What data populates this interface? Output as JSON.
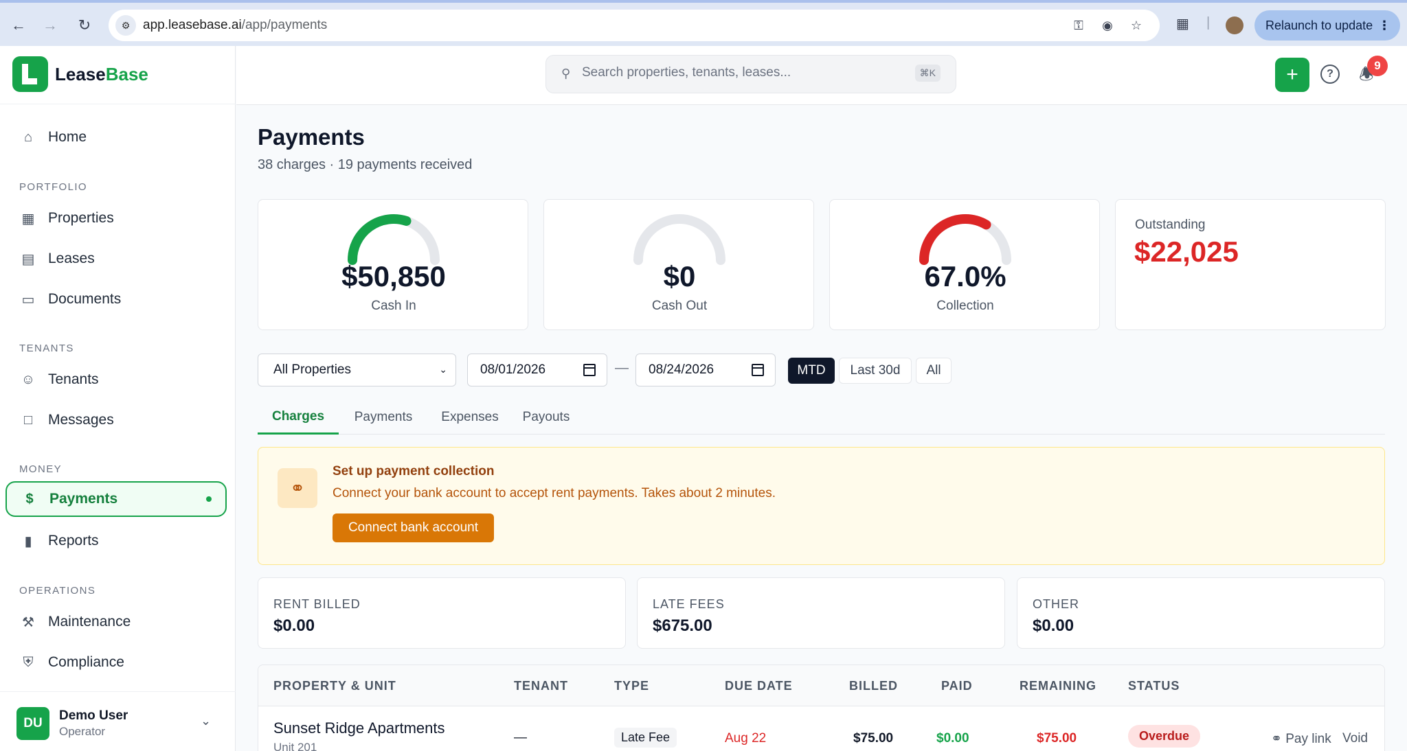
{
  "browser": {
    "url_host": "app.leasebase.ai",
    "url_path": "/app/payments",
    "relaunch_label": "Relaunch to update"
  },
  "brand": {
    "name_dark": "Lease",
    "name_accent": "Base"
  },
  "sidebar": {
    "home": "Home",
    "sections": {
      "portfolio": "PORTFOLIO",
      "tenants": "TENANTS",
      "money": "MONEY",
      "operations": "OPERATIONS"
    },
    "items": {
      "properties": "Properties",
      "leases": "Leases",
      "documents": "Documents",
      "tenants": "Tenants",
      "messages": "Messages",
      "payments": "Payments",
      "reports": "Reports",
      "maintenance": "Maintenance",
      "compliance": "Compliance"
    },
    "user": {
      "initials": "DU",
      "name": "Demo User",
      "role": "Operator"
    }
  },
  "topbar": {
    "search_placeholder": "Search properties, tenants, leases...",
    "shortcut": "⌘K",
    "notification_count": "9"
  },
  "page": {
    "title": "Payments",
    "subtitle": "38 charges · 19 payments received"
  },
  "stats": {
    "cash_in": {
      "value": "$50,850",
      "label": "Cash In",
      "gauge_fraction": 0.6
    },
    "cash_out": {
      "value": "$0",
      "label": "Cash Out",
      "gauge_fraction": 0
    },
    "collection": {
      "value": "67.0%",
      "label": "Collection",
      "gauge_fraction": 0.67
    },
    "outstanding": {
      "label": "Outstanding",
      "value": "$22,025"
    }
  },
  "filters": {
    "property": "All Properties",
    "date_from": "08/01/2026",
    "date_sep": "—",
    "date_to": "08/24/2026",
    "ranges": [
      "MTD",
      "Last 30d",
      "All"
    ],
    "active_range": "MTD"
  },
  "tabs": [
    "Charges",
    "Payments",
    "Expenses",
    "Payouts"
  ],
  "active_tab": "Charges",
  "banner": {
    "title": "Set up payment collection",
    "text": "Connect your bank account to accept rent payments. Takes about 2 minutes.",
    "button": "Connect bank account"
  },
  "summary": [
    {
      "label": "RENT BILLED",
      "value": "$0.00"
    },
    {
      "label": "LATE FEES",
      "value": "$675.00"
    },
    {
      "label": "OTHER",
      "value": "$0.00"
    }
  ],
  "table": {
    "columns": [
      "PROPERTY & UNIT",
      "TENANT",
      "TYPE",
      "DUE DATE",
      "BILLED",
      "PAID",
      "REMAINING",
      "STATUS"
    ],
    "rows": [
      {
        "property": "Sunset Ridge Apartments",
        "unit": "Unit 201",
        "tenant": "—",
        "type": "Late Fee",
        "due": "Aug 22",
        "billed": "$75.00",
        "paid": "$0.00",
        "remaining": "$75.00",
        "status": "Overdue",
        "actions": [
          "Pay link",
          "Void"
        ]
      }
    ]
  },
  "colors": {
    "brand_green": "#16a34a",
    "danger_red": "#dc2626",
    "warning_amber": "#d97706"
  }
}
